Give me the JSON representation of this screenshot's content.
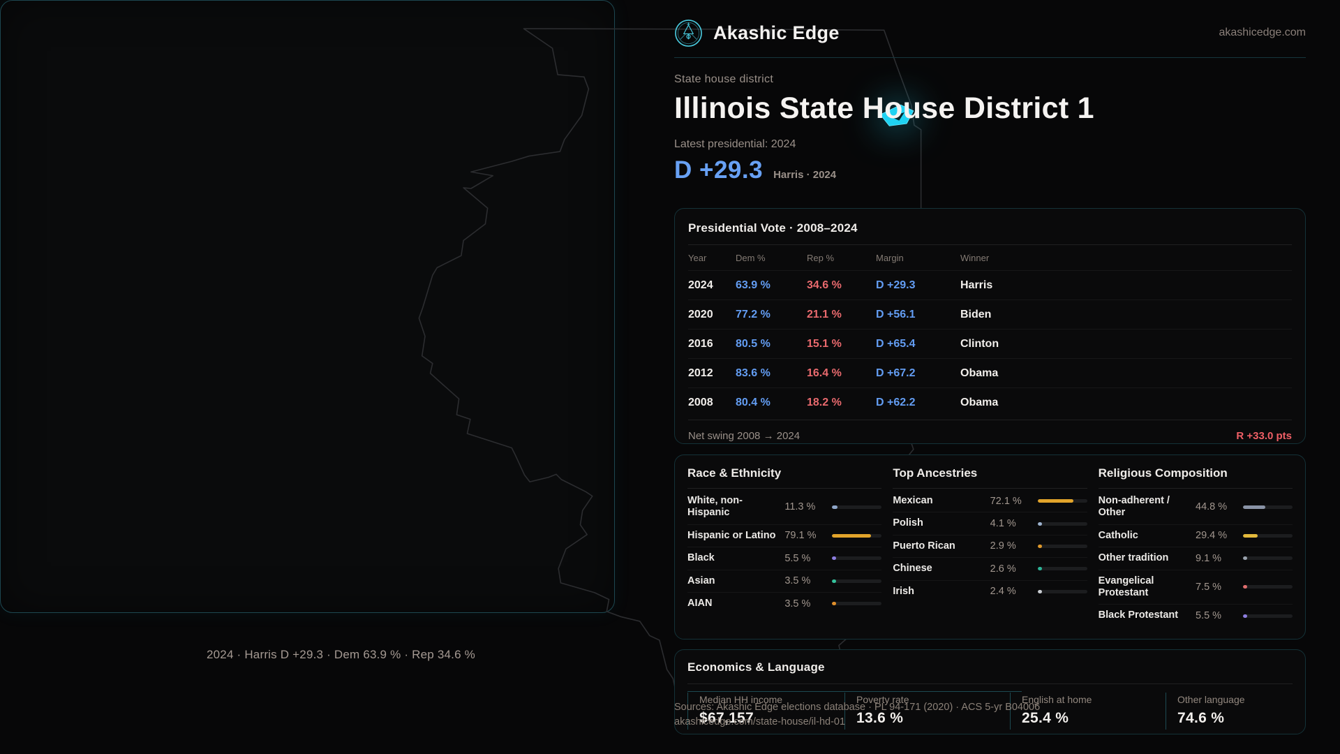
{
  "brand": {
    "name": "Akashic Edge",
    "domain": "akashicedge.com"
  },
  "header": {
    "eyebrow": "State house district",
    "title": "Illinois State House District 1",
    "latest_label": "Latest presidential: 2024",
    "margin_value": "D +29.3",
    "margin_caption": "Harris · 2024"
  },
  "map": {
    "caption": "2024 · Harris D +29.3 · Dem 63.9 % · Rep 34.6 %"
  },
  "colors": {
    "accent_cyan": "#35c6dc",
    "dem_blue": "#639df3",
    "rep_red": "#e9646c",
    "district_highlight": "#1fd2f2"
  },
  "presidential_table": {
    "title": "Presidential Vote · 2008–2024",
    "columns": [
      "Year",
      "Dem %",
      "Rep %",
      "Margin",
      "Winner"
    ],
    "rows": [
      {
        "year": "2024",
        "dem": "63.9 %",
        "rep": "34.6 %",
        "margin": "D +29.3",
        "winner": "Harris"
      },
      {
        "year": "2020",
        "dem": "77.2 %",
        "rep": "21.1 %",
        "margin": "D +56.1",
        "winner": "Biden"
      },
      {
        "year": "2016",
        "dem": "80.5 %",
        "rep": "15.1 %",
        "margin": "D +65.4",
        "winner": "Clinton"
      },
      {
        "year": "2012",
        "dem": "83.6 %",
        "rep": "16.4 %",
        "margin": "D +67.2",
        "winner": "Obama"
      },
      {
        "year": "2008",
        "dem": "80.4 %",
        "rep": "18.2 %",
        "margin": "D +62.2",
        "winner": "Obama"
      }
    ],
    "net_swing_label": "Net swing 2008 → 2024",
    "net_swing_value": "R +33.0 pts"
  },
  "race_ethnicity": {
    "title": "Race & Ethnicity",
    "rows": [
      {
        "label": "White, non-Hispanic",
        "value": "11.3 %",
        "pct": 11.3,
        "color": "#8fa6c9"
      },
      {
        "label": "Hispanic or Latino",
        "value": "79.1 %",
        "pct": 79.1,
        "color": "#e2a42b"
      },
      {
        "label": "Black",
        "value": "5.5 %",
        "pct": 5.5,
        "color": "#8d7ee0"
      },
      {
        "label": "Asian",
        "value": "3.5 %",
        "pct": 3.5,
        "color": "#34c39c"
      },
      {
        "label": "AIAN",
        "value": "3.5 %",
        "pct": 3.5,
        "color": "#e08f2b"
      }
    ]
  },
  "ancestries": {
    "title": "Top Ancestries",
    "rows": [
      {
        "label": "Mexican",
        "value": "72.1 %",
        "pct": 72.1,
        "color": "#e2a42b"
      },
      {
        "label": "Polish",
        "value": "4.1 %",
        "pct": 4.1,
        "color": "#9db3cf"
      },
      {
        "label": "Puerto Rican",
        "value": "2.9 %",
        "pct": 2.9,
        "color": "#e0992b"
      },
      {
        "label": "Chinese",
        "value": "2.6 %",
        "pct": 2.6,
        "color": "#2db598"
      },
      {
        "label": "Irish",
        "value": "2.4 %",
        "pct": 2.4,
        "color": "#c9cdd2"
      }
    ]
  },
  "religion": {
    "title": "Religious Composition",
    "rows": [
      {
        "label": "Non-adherent / Other",
        "value": "44.8 %",
        "pct": 44.8,
        "color": "#8a93a6"
      },
      {
        "label": "Catholic",
        "value": "29.4 %",
        "pct": 29.4,
        "color": "#e3b93c"
      },
      {
        "label": "Other tradition",
        "value": "9.1 %",
        "pct": 9.1,
        "color": "#9aa2ad"
      },
      {
        "label": "Evangelical Protestant",
        "value": "7.5 %",
        "pct": 7.5,
        "color": "#e06e6e"
      },
      {
        "label": "Black Protestant",
        "value": "5.5 %",
        "pct": 5.5,
        "color": "#8d7ee0"
      }
    ]
  },
  "economics": {
    "title": "Economics & Language",
    "stats": [
      {
        "label": "Median HH income",
        "value": "$67,157"
      },
      {
        "label": "Poverty rate",
        "value": "13.6 %"
      },
      {
        "label": "English at home",
        "value": "25.4 %"
      },
      {
        "label": "Other language",
        "value": "74.6 %"
      }
    ]
  },
  "footer": {
    "sources": "Sources: Akashic Edge elections database · PL 94-171 (2020) · ACS 5-yr B04006",
    "permalink": "akashicedge.com/state-house/il-hd-01"
  }
}
